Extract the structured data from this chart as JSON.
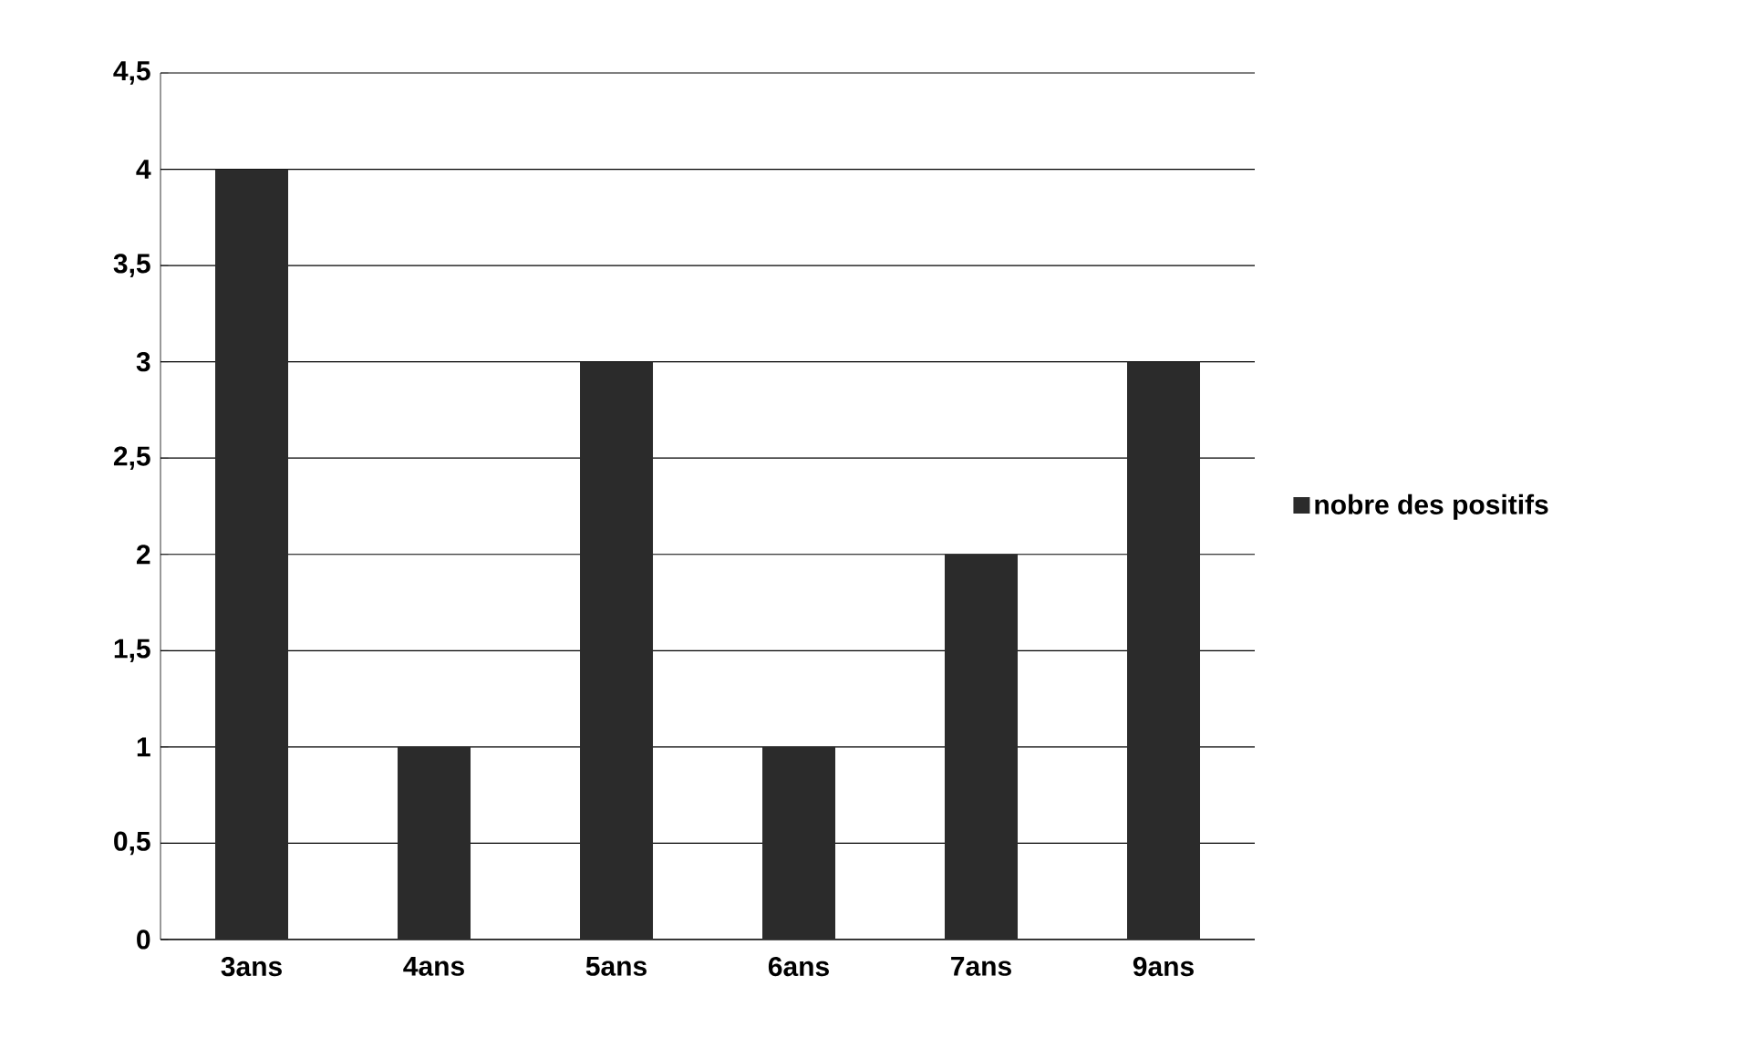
{
  "chart_data": {
    "type": "bar",
    "categories": [
      "3ans",
      "4ans",
      "5ans",
      "6ans",
      "7ans",
      "9ans"
    ],
    "series": [
      {
        "name": "nobre des positifs",
        "color": "#2b2b2b",
        "values": [
          4,
          1,
          3,
          1,
          2,
          3
        ]
      }
    ],
    "ylim": [
      0,
      4.5
    ],
    "yticks": [
      0,
      {
        "value": 0.5,
        "label": "0,5"
      },
      1,
      {
        "value": 1.5,
        "label": "1,5"
      },
      2,
      {
        "value": 2.5,
        "label": "2,5"
      },
      3,
      {
        "value": 3.5,
        "label": "3,5"
      },
      4,
      {
        "value": 4.5,
        "label": "4,5"
      }
    ],
    "grid": "y",
    "legend": "right"
  }
}
